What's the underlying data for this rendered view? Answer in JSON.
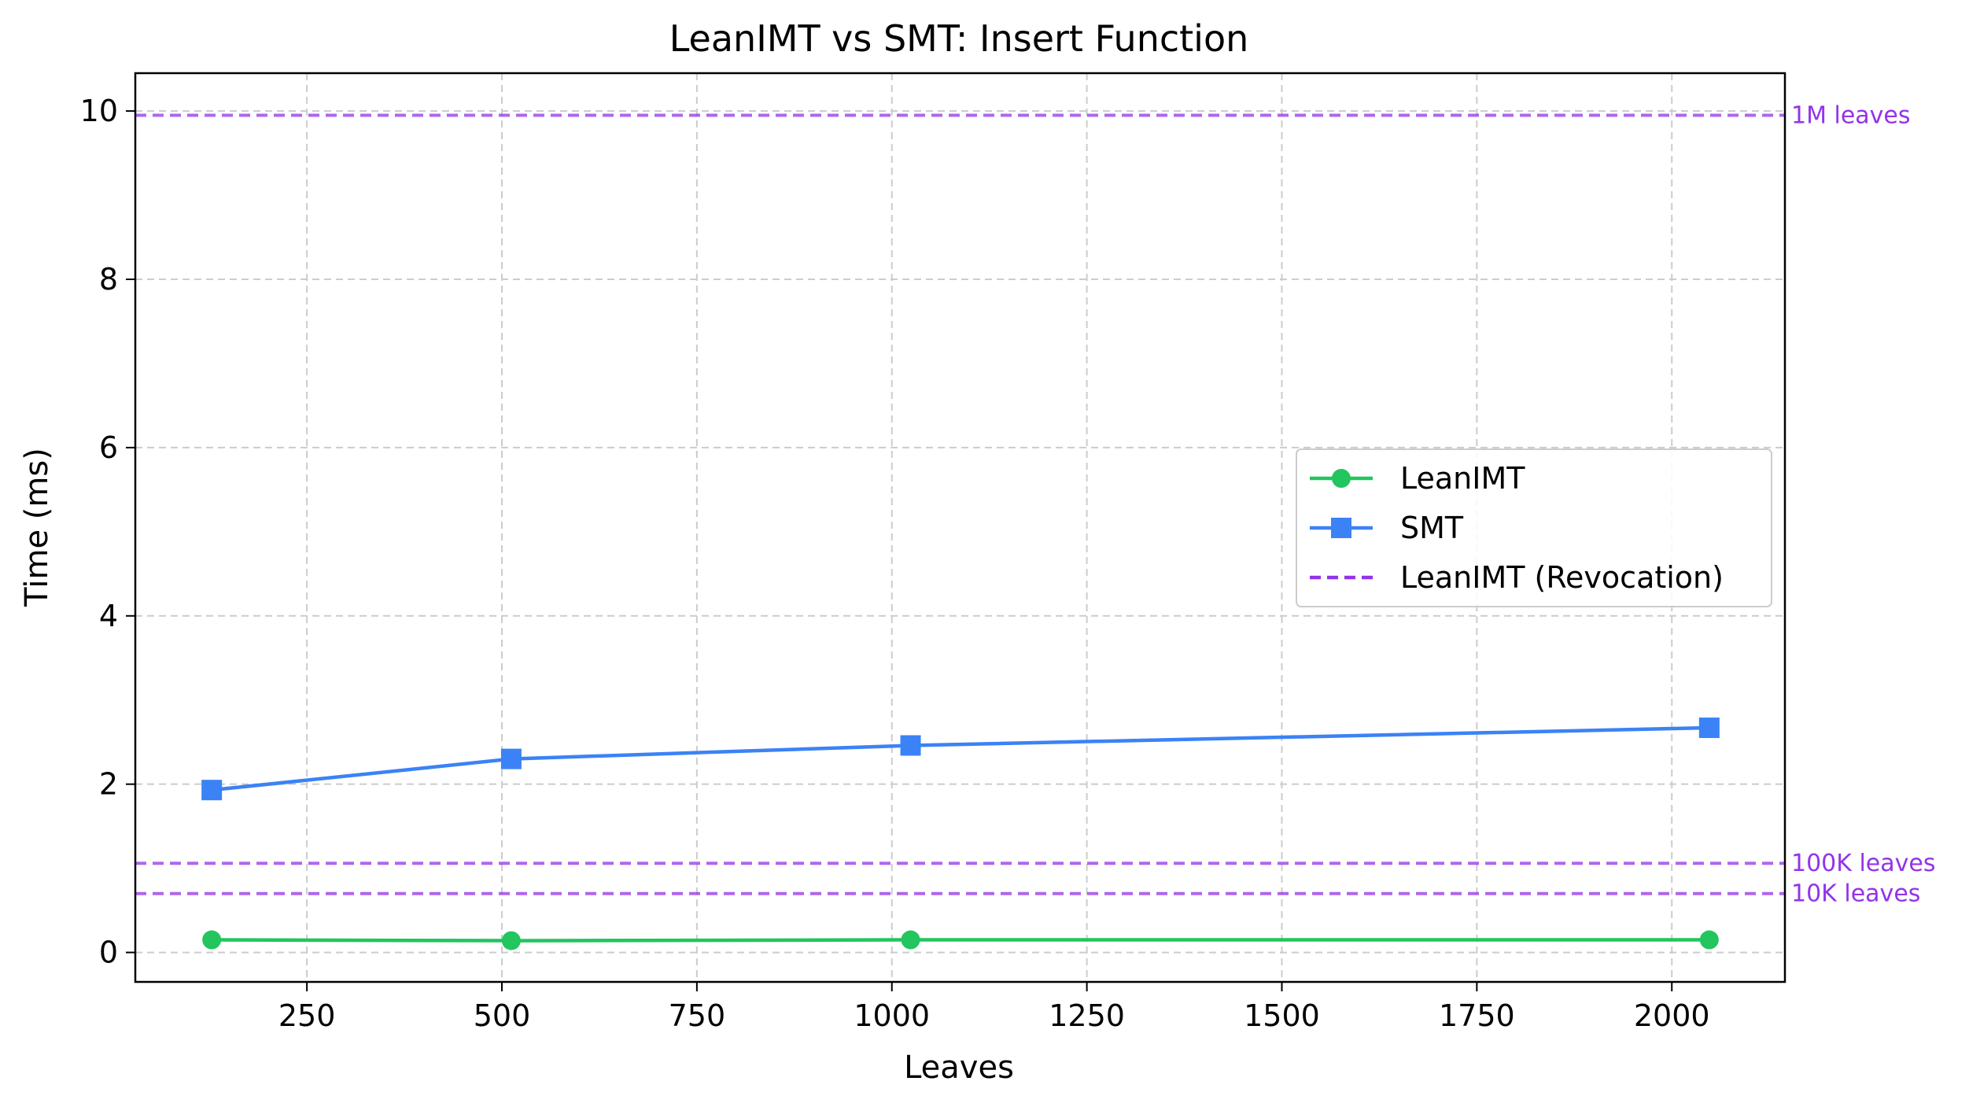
{
  "chart_data": {
    "type": "line",
    "title": "LeanIMT vs SMT: Insert Function",
    "xlabel": "Leaves",
    "ylabel": "Time (ms)",
    "xlim": [
      30,
      2145
    ],
    "ylim": [
      -0.35,
      10.45
    ],
    "xticks": [
      250,
      500,
      750,
      1000,
      1250,
      1500,
      1750,
      2000
    ],
    "yticks": [
      0,
      2,
      4,
      6,
      8,
      10
    ],
    "grid": true,
    "legend_position": "center-right",
    "x": [
      128,
      512,
      1024,
      2048
    ],
    "series": [
      {
        "name": "LeanIMT",
        "values": [
          0.15,
          0.14,
          0.15,
          0.15
        ],
        "color": "#22c55e",
        "marker": "circle"
      },
      {
        "name": "SMT",
        "values": [
          1.93,
          2.3,
          2.46,
          2.67
        ],
        "color": "#3b82f6",
        "marker": "square"
      }
    ],
    "reference_lines": {
      "legend_name": "LeanIMT (Revocation)",
      "color": "#9333ea",
      "style": "dashed",
      "lines": [
        {
          "label": "1M leaves",
          "value": 9.95
        },
        {
          "label": "100K leaves",
          "value": 1.06
        },
        {
          "label": "10K leaves",
          "value": 0.7
        }
      ]
    }
  }
}
